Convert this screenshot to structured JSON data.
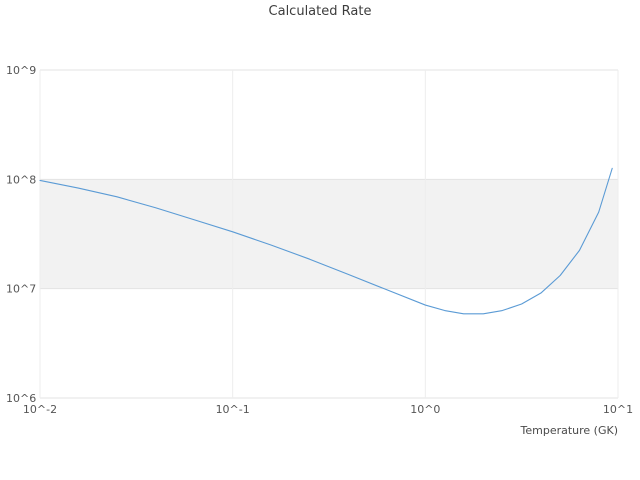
{
  "chart_data": {
    "type": "line",
    "title": "Calculated Rate",
    "xlabel": "Temperature (GK)",
    "ylabel": "",
    "xscale": "log",
    "yscale": "log",
    "xlim": [
      0.01,
      10
    ],
    "ylim": [
      1000000,
      1000000000
    ],
    "x_ticks": {
      "values": [
        0.01,
        0.1,
        1,
        10
      ],
      "labels": [
        "10^-2",
        "10^-1",
        "10^0",
        "10^1"
      ]
    },
    "y_ticks": {
      "values": [
        1000000,
        10000000,
        100000000,
        1000000000
      ],
      "labels": [
        "10^6",
        "10^7",
        "10^8",
        "10^9"
      ]
    },
    "grid": true,
    "legend": "none",
    "band": {
      "ymin": 10000000,
      "ymax": 100000000,
      "color": "#f2f2f2"
    },
    "series": [
      {
        "name": "calculated-rate",
        "color": "#5b9bd5",
        "x": [
          0.01,
          0.0158,
          0.0251,
          0.0398,
          0.0631,
          0.1,
          0.158,
          0.251,
          0.398,
          0.631,
          1.0,
          1.26,
          1.58,
          2.0,
          2.51,
          3.16,
          3.98,
          5.01,
          6.31,
          7.94,
          9.33
        ],
        "y": [
          97700000,
          83200000,
          69200000,
          55000000,
          42700000,
          33100000,
          25100000,
          18600000,
          13500000,
          9770000,
          7080000,
          6310000,
          5890000,
          5890000,
          6310000,
          7240000,
          9120000,
          13200000,
          22400000,
          50100000,
          126000000
        ]
      }
    ]
  }
}
